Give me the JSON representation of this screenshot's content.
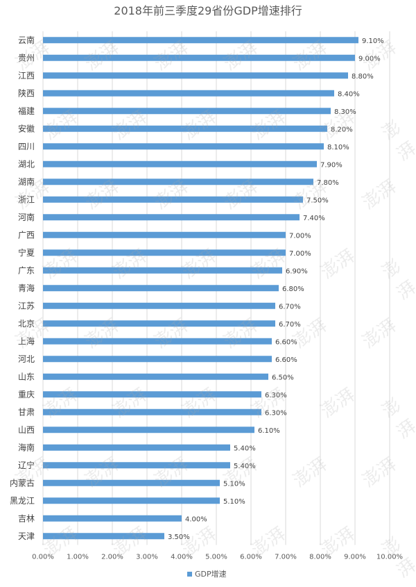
{
  "chart_data": {
    "type": "bar",
    "orientation": "horizontal",
    "title": "2018年前三季度29省份GDP增速排行",
    "categories": [
      "云南",
      "贵州",
      "江西",
      "陕西",
      "福建",
      "安徽",
      "四川",
      "湖北",
      "湖南",
      "浙江",
      "河南",
      "广西",
      "宁夏",
      "广东",
      "青海",
      "江苏",
      "北京",
      "上海",
      "河北",
      "山东",
      "重庆",
      "甘肃",
      "山西",
      "海南",
      "辽宁",
      "内蒙古",
      "黑龙江",
      "吉林",
      "天津"
    ],
    "series": [
      {
        "name": "GDP增速",
        "values": [
          9.1,
          9.0,
          8.8,
          8.4,
          8.3,
          8.2,
          8.1,
          7.9,
          7.8,
          7.5,
          7.4,
          7.0,
          7.0,
          6.9,
          6.8,
          6.7,
          6.7,
          6.6,
          6.6,
          6.5,
          6.3,
          6.3,
          6.1,
          5.4,
          5.4,
          5.1,
          5.1,
          4.0,
          3.5
        ],
        "labels": [
          "9.10%",
          "9.00%",
          "8.80%",
          "8.40%",
          "8.30%",
          "8.20%",
          "8.10%",
          "7.90%",
          "7.80%",
          "7.50%",
          "7.40%",
          "7.00%",
          "7.00%",
          "6.90%",
          "6.80%",
          "6.70%",
          "6.70%",
          "6.60%",
          "6.60%",
          "6.50%",
          "6.30%",
          "6.30%",
          "6.10%",
          "5.40%",
          "5.40%",
          "5.10%",
          "5.10%",
          "4.00%",
          "3.50%"
        ]
      }
    ],
    "xlim": [
      0,
      10
    ],
    "xticks": [
      "0.00%",
      "1.00%",
      "2.00%",
      "3.00%",
      "4.00%",
      "5.00%",
      "6.00%",
      "7.00%",
      "8.00%",
      "9.00%",
      "10.00%"
    ],
    "grid": "vertical",
    "legend": "bottom",
    "bar_color": "#5b9bd5",
    "watermark_text": "澎湃"
  }
}
